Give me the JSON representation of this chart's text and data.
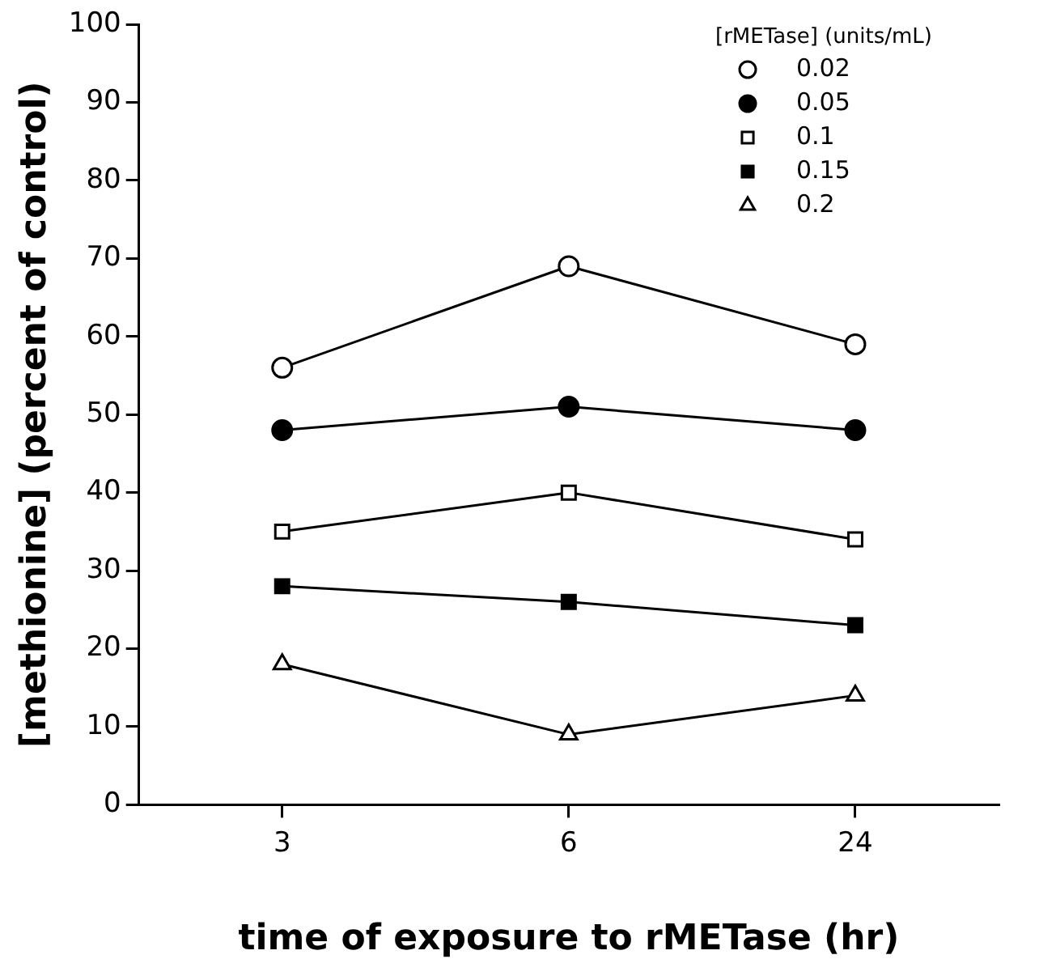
{
  "chart_data": {
    "type": "line",
    "xlabel": "time of exposure to rMETase (hr)",
    "ylabel": "[methionine] (percent of control)",
    "legend_title": "[rMETase] (units/mL)",
    "categories": [
      "3",
      "6",
      "24"
    ],
    "ylim": [
      0,
      100
    ],
    "yticks": [
      0,
      10,
      20,
      30,
      40,
      50,
      60,
      70,
      80,
      90,
      100
    ],
    "grid": false,
    "legend": "top right",
    "series": [
      {
        "name": "0.02",
        "color": "#000000",
        "marker": "circle",
        "values": [
          56,
          69,
          59
        ]
      },
      {
        "name": "0.05",
        "color": "#000000",
        "marker": "circle",
        "values": [
          48,
          51,
          48
        ]
      },
      {
        "name": "0.1",
        "color": "#000000",
        "marker": "square",
        "values": [
          35,
          40,
          34
        ]
      },
      {
        "name": "0.15",
        "color": "#000000",
        "marker": "square",
        "values": [
          28,
          26,
          23
        ]
      },
      {
        "name": "0.2",
        "color": "#000000",
        "marker": "triangle",
        "values": [
          18,
          9,
          14
        ]
      }
    ]
  }
}
